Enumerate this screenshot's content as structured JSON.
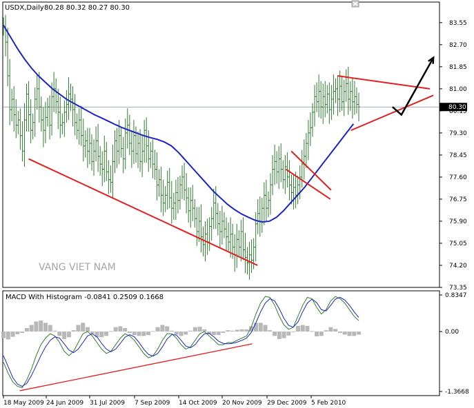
{
  "chart_data": [
    {
      "type": "ohlc",
      "title": "USDX,Daily",
      "ohlc_header": "80.28 80.32 80.27 80.30",
      "watermark": "VANG VIET NAM",
      "last_price_label": "80.30",
      "last_price": 80.3,
      "ylim": [
        73.35,
        84.05
      ],
      "yticks": [
        83.55,
        82.7,
        81.85,
        81.0,
        80.15,
        79.3,
        78.45,
        77.6,
        76.75,
        75.9,
        75.05,
        74.2,
        73.35
      ],
      "ytick_labels": [
        "83.55",
        "82.70",
        "81.85",
        "81.00",
        "80.15",
        "79.30",
        "78.45",
        "77.60",
        "76.75",
        "75.90",
        "75.05",
        "74.20",
        "73.35"
      ],
      "series": [
        {
          "kind": "ohlc",
          "color": "#2f7d2f",
          "close": [
            83.4,
            82.8,
            81.5,
            80.2,
            80.6,
            80.0,
            79.6,
            79.8,
            79.2,
            78.6,
            79.8,
            80.8,
            80.0,
            79.4,
            79.7,
            80.6,
            81.0,
            80.3,
            79.8,
            79.4,
            79.9,
            80.3,
            79.6,
            80.7,
            81.0,
            80.5,
            80.1,
            79.6,
            79.7,
            80.1,
            80.4,
            80.8,
            80.6,
            80.2,
            79.7,
            79.4,
            79.8,
            79.2,
            78.8,
            79.0,
            78.6,
            78.9,
            78.2,
            78.6,
            79.0,
            78.4,
            78.1,
            77.9,
            78.6,
            77.8,
            77.5,
            77.4,
            78.2,
            79.0,
            78.6,
            79.2,
            78.7,
            78.3,
            79.3,
            79.6,
            78.9,
            78.6,
            79.2,
            78.5,
            78.9,
            78.2,
            78.6,
            79.4,
            78.8,
            78.3,
            78.6,
            78.1,
            77.9,
            77.3,
            77.5,
            76.9,
            76.6,
            76.9,
            77.4,
            76.8,
            76.4,
            76.6,
            77.0,
            76.7,
            77.3,
            77.6,
            77.1,
            76.8,
            76.3,
            76.7,
            76.4,
            76.0,
            75.5,
            75.9,
            75.3,
            75.0,
            75.4,
            75.1,
            75.7,
            76.0,
            76.6,
            76.2,
            75.8,
            75.5,
            75.9,
            75.6,
            75.3,
            75.1,
            75.4,
            74.9,
            74.6,
            75.2,
            74.9,
            75.5,
            74.8,
            74.5,
            74.3,
            74.6,
            74.4,
            74.9,
            75.8,
            76.2,
            75.9,
            76.4,
            76.9,
            76.4,
            76.7,
            77.3,
            77.9,
            78.2,
            77.8,
            78.3,
            77.9,
            77.5,
            78.0,
            77.6,
            77.3,
            77.0,
            77.2,
            76.9,
            77.3,
            77.6,
            78.1,
            78.4,
            78.9,
            79.3,
            79.5,
            80.1,
            80.7,
            80.5,
            80.9,
            80.3,
            80.7,
            80.4,
            80.8,
            80.2,
            80.6,
            80.9,
            81.0,
            80.6,
            81.1,
            80.5,
            80.9,
            81.2,
            80.6,
            80.9,
            80.5,
            80.7,
            80.4,
            80.3
          ]
        },
        {
          "kind": "moving_average",
          "color": "#1a23c8",
          "values": [
            83.45,
            83.0,
            82.55,
            82.15,
            81.8,
            81.5,
            81.25,
            81.0,
            80.8,
            80.6,
            80.45,
            80.3,
            80.15,
            80.0,
            79.88,
            79.75,
            79.62,
            79.5,
            79.4,
            79.3,
            79.2,
            79.12,
            79.05,
            78.95,
            78.8,
            78.55,
            78.25,
            77.95,
            77.65,
            77.35,
            77.05,
            76.8,
            76.55,
            76.35,
            76.18,
            76.05,
            75.93,
            75.87,
            75.9,
            76.05,
            76.3,
            76.6,
            76.9,
            77.2,
            77.55,
            77.9,
            78.25,
            78.6,
            78.95,
            79.3,
            79.65
          ]
        }
      ],
      "overlays": [
        {
          "kind": "trendline",
          "color": "#e21e1e",
          "points": [
            [
              0.071,
              78.3
            ],
            [
              0.715,
              74.2
            ]
          ]
        },
        {
          "kind": "trendline",
          "color": "#e21e1e",
          "points": [
            [
              0.81,
              78.6
            ],
            [
              0.922,
              77.1
            ]
          ]
        },
        {
          "kind": "trendline",
          "color": "#e21e1e",
          "points": [
            [
              0.795,
              77.9
            ],
            [
              0.92,
              76.75
            ]
          ]
        },
        {
          "kind": "trendline",
          "color": "#e21e1e",
          "points": [
            [
              0.94,
              81.5
            ],
            [
              1.2,
              81.0
            ]
          ]
        },
        {
          "kind": "trendline",
          "color": "#e21e1e",
          "points": [
            [
              0.978,
              79.4
            ],
            [
              1.21,
              80.75
            ]
          ]
        },
        {
          "kind": "arrow",
          "color": "#000000",
          "points": [
            [
              1.095,
              80.3
            ],
            [
              1.12,
              80.0
            ],
            [
              1.21,
              82.2
            ]
          ]
        }
      ]
    },
    {
      "type": "macd",
      "title": "MACD With Histogram -0.0841 0.2509 0.1668",
      "ylim": [
        -1.3668,
        0.8347
      ],
      "yticks": [
        0.8347,
        0.0,
        -1.3668
      ],
      "ytick_labels": [
        "0.8347",
        "0.00",
        "-1.3668"
      ],
      "series": [
        {
          "name": "",
          "kind": "line",
          "color": "#2f7d2f",
          "values": [
            -0.7,
            -0.95,
            -1.15,
            -1.25,
            -1.28,
            -1.1,
            -0.85,
            -0.55,
            -0.3,
            -0.15,
            -0.05,
            -0.1,
            -0.25,
            -0.45,
            -0.55,
            -0.45,
            -0.25,
            -0.05,
            0.0,
            -0.1,
            -0.25,
            -0.4,
            -0.5,
            -0.45,
            -0.3,
            -0.15,
            -0.05,
            -0.1,
            -0.2,
            -0.35,
            -0.5,
            -0.6,
            -0.55,
            -0.4,
            -0.2,
            -0.05,
            -0.05,
            -0.15,
            -0.3,
            -0.4,
            -0.35,
            -0.2,
            -0.05,
            0.0,
            -0.1,
            -0.2,
            -0.3,
            -0.3,
            -0.25,
            -0.25,
            -0.2,
            -0.15,
            -0.1,
            0.1,
            0.4,
            0.65,
            0.8,
            0.78,
            0.6,
            0.35,
            0.15,
            0.05,
            0.1,
            0.35,
            0.6,
            0.78,
            0.75,
            0.55,
            0.4,
            0.5,
            0.7,
            0.8,
            0.75,
            0.65,
            0.5,
            0.35,
            0.25
          ]
        },
        {
          "name": "",
          "kind": "line",
          "color": "#1a23c8",
          "values": [
            -0.55,
            -0.8,
            -1.05,
            -1.2,
            -1.25,
            -1.18,
            -1.0,
            -0.78,
            -0.55,
            -0.35,
            -0.2,
            -0.12,
            -0.15,
            -0.28,
            -0.42,
            -0.48,
            -0.4,
            -0.25,
            -0.1,
            -0.05,
            -0.12,
            -0.27,
            -0.4,
            -0.46,
            -0.4,
            -0.27,
            -0.13,
            -0.07,
            -0.12,
            -0.25,
            -0.4,
            -0.52,
            -0.56,
            -0.5,
            -0.35,
            -0.17,
            -0.07,
            -0.08,
            -0.2,
            -0.33,
            -0.37,
            -0.3,
            -0.16,
            -0.05,
            -0.04,
            -0.12,
            -0.22,
            -0.27,
            -0.28,
            -0.27,
            -0.24,
            -0.2,
            -0.15,
            -0.02,
            0.2,
            0.45,
            0.65,
            0.75,
            0.7,
            0.52,
            0.3,
            0.14,
            0.1,
            0.22,
            0.45,
            0.65,
            0.74,
            0.66,
            0.5,
            0.47,
            0.6,
            0.74,
            0.78,
            0.72,
            0.6,
            0.45,
            0.32
          ]
        },
        {
          "name": "",
          "kind": "histogram",
          "color": "#b8b8b8",
          "values": [
            -0.15,
            -0.18,
            -0.12,
            -0.06,
            -0.03,
            0.08,
            0.15,
            0.23,
            0.25,
            0.2,
            0.15,
            0.02,
            -0.1,
            -0.17,
            -0.13,
            0.03,
            0.15,
            0.2,
            0.1,
            -0.05,
            -0.13,
            -0.13,
            -0.1,
            0.01,
            0.1,
            0.12,
            0.08,
            -0.03,
            -0.08,
            -0.1,
            -0.1,
            -0.08,
            0.01,
            0.1,
            0.15,
            0.12,
            0.02,
            -0.07,
            -0.1,
            -0.07,
            0.02,
            0.1,
            0.11,
            0.05,
            -0.06,
            -0.08,
            -0.08,
            -0.03,
            0.03,
            0.02,
            0.04,
            0.05,
            0.05,
            0.12,
            0.2,
            0.2,
            0.15,
            0.03,
            -0.1,
            -0.17,
            -0.15,
            -0.09,
            0.0,
            0.13,
            0.15,
            0.13,
            0.01,
            -0.11,
            -0.1,
            0.03,
            0.1,
            0.06,
            -0.03,
            -0.07,
            -0.1,
            -0.1,
            -0.07
          ]
        }
      ],
      "overlays": [
        {
          "kind": "trendline",
          "color": "#e21e1e",
          "points": [
            [
              0.046,
              -1.35
            ],
            [
              0.7,
              -0.28
            ]
          ]
        }
      ]
    }
  ],
  "x_axis": {
    "tick_labels": [
      "18 May 2009",
      "24 Jun 2009",
      "31 Jul 2009",
      "7 Sep 2009",
      "14 Oct 2009",
      "20 Nov 2009",
      "29 Dec 2009",
      "5 Feb 2010"
    ]
  }
}
